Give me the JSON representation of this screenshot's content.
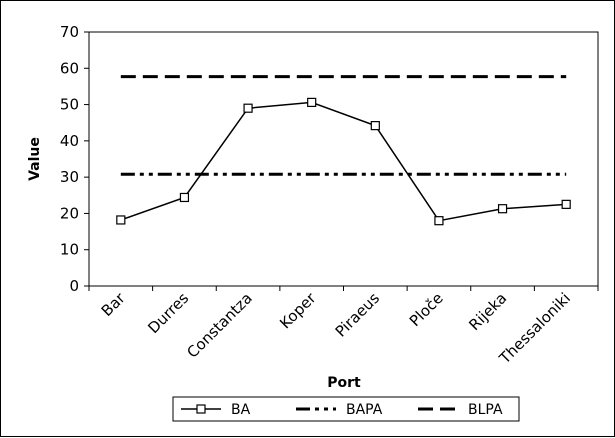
{
  "chart_data": {
    "type": "line",
    "title": "",
    "xlabel": "Port",
    "ylabel": "Value",
    "ylim": [
      0,
      70
    ],
    "yticks": [
      0,
      10,
      20,
      30,
      40,
      50,
      60,
      70
    ],
    "grid": false,
    "legend_position": "bottom",
    "categories": [
      "Bar",
      "Durres",
      "Constantza",
      "Koper",
      "Piraeus",
      "Ploče",
      "Rijeka",
      "Thessaloniki"
    ],
    "series": [
      {
        "name": "BA",
        "style": "solid-square-markers",
        "color": "#000000",
        "values": [
          18.2,
          24.4,
          49.0,
          50.6,
          44.2,
          18.0,
          21.3,
          22.5
        ]
      },
      {
        "name": "BAPA",
        "style": "dash-dot-dot",
        "color": "#000000",
        "values": [
          30.8,
          30.8,
          30.8,
          30.8,
          30.8,
          30.8,
          30.8,
          30.8
        ]
      },
      {
        "name": "BLPA",
        "style": "long-dash",
        "color": "#000000",
        "values": [
          57.7,
          57.7,
          57.7,
          57.7,
          57.7,
          57.7,
          57.7,
          57.7
        ]
      }
    ]
  }
}
